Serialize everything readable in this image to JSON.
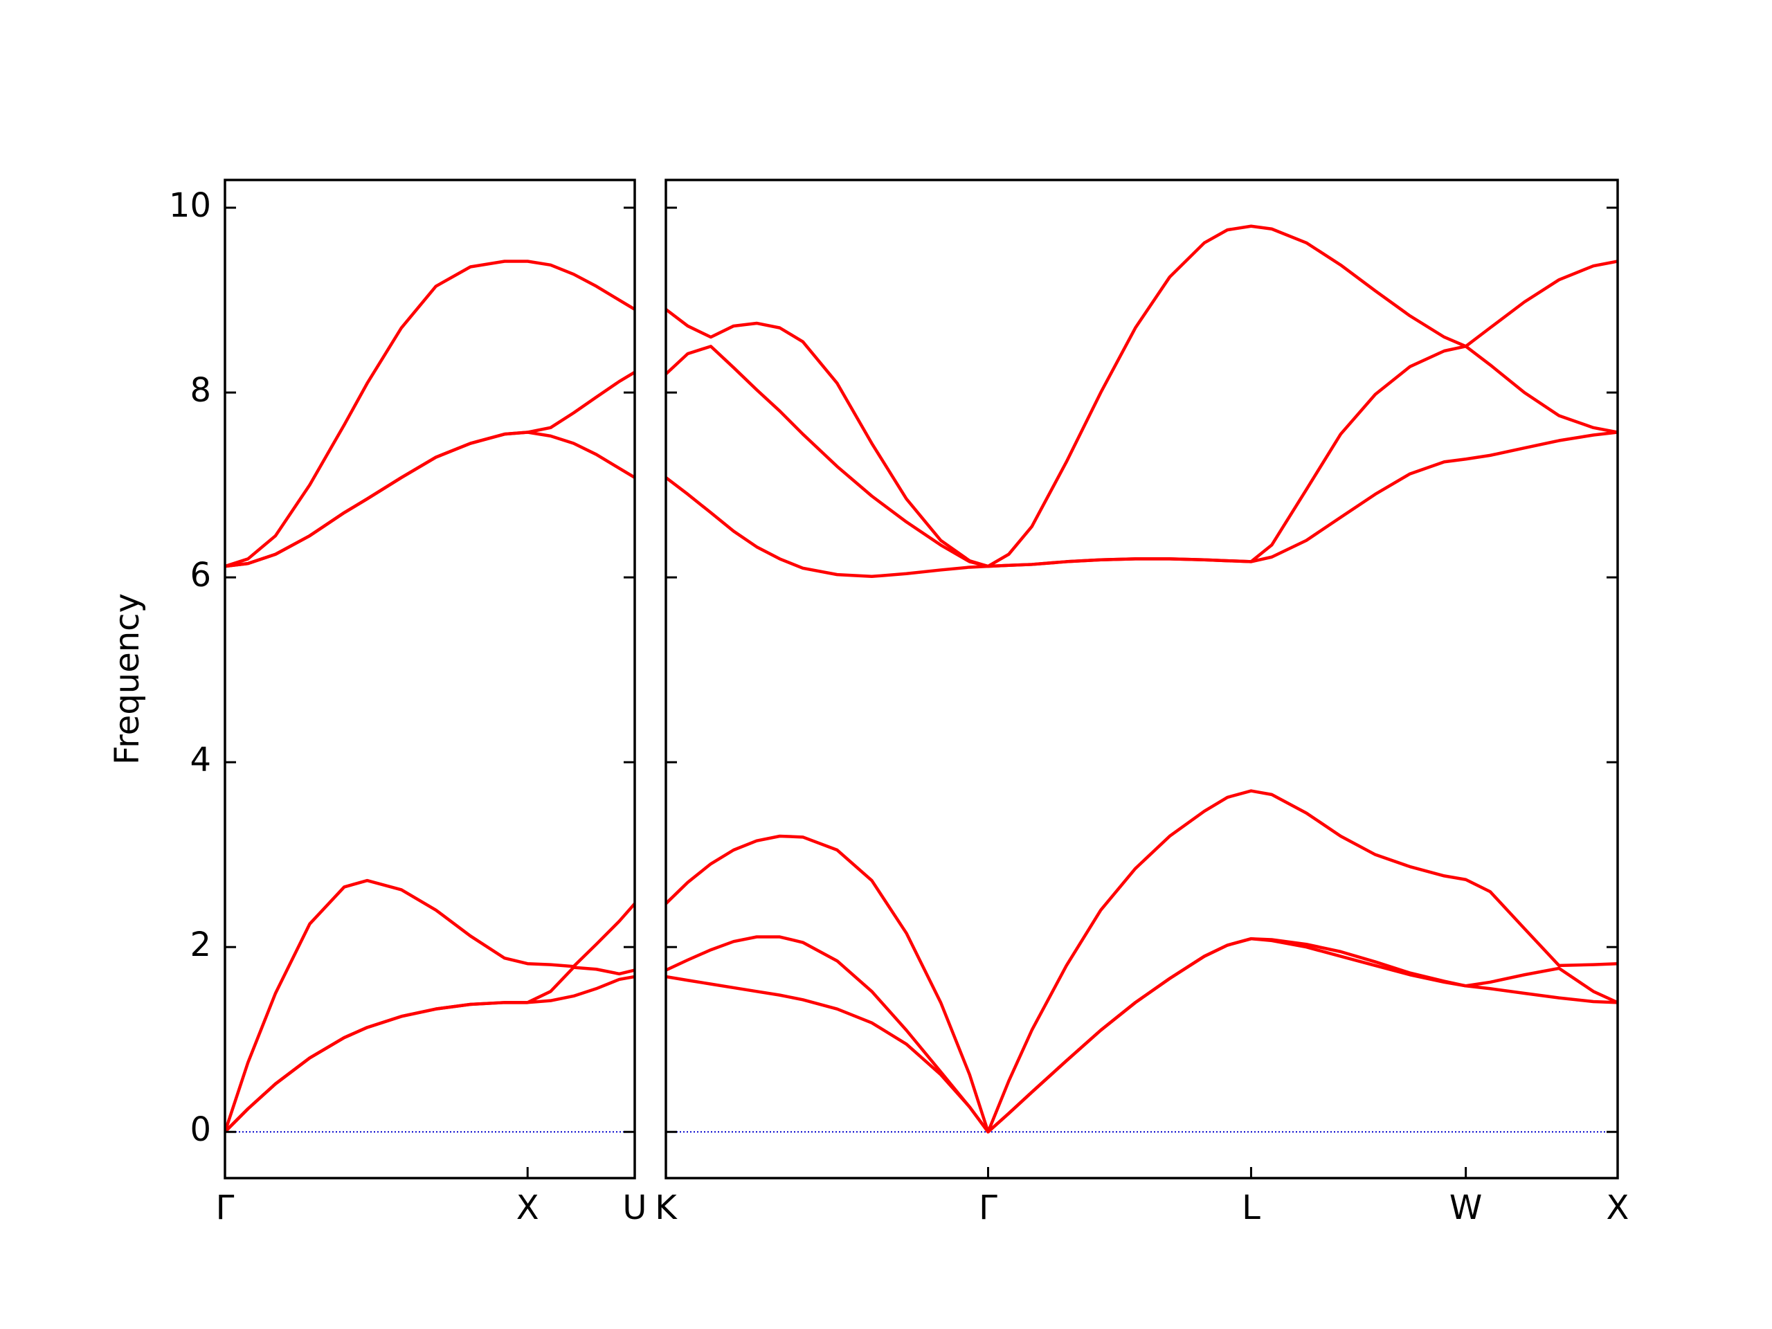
{
  "chart_data": [
    {
      "type": "line",
      "ylabel": "Frequency",
      "color": "#ff0000",
      "zero_line_color": "#0000cc",
      "show_ytick_labels": true,
      "xlim": [
        0,
        1.354
      ],
      "ylim": [
        -0.5,
        10.3
      ],
      "yticks": [
        0,
        2,
        4,
        6,
        8,
        10
      ],
      "xticks": [
        {
          "value": 0,
          "label": "Γ"
        },
        {
          "value": 1,
          "label": "X"
        },
        {
          "value": 1.354,
          "label": "U"
        }
      ],
      "x": [
        0,
        0.076,
        0.167,
        0.28,
        0.394,
        0.47,
        0.583,
        0.697,
        0.811,
        0.924,
        1.0,
        1.076,
        1.152,
        1.227,
        1.303,
        1.354
      ],
      "series": [
        {
          "values": [
            0,
            0.25,
            0.52,
            0.8,
            1.02,
            1.13,
            1.25,
            1.33,
            1.38,
            1.4,
            1.4,
            1.42,
            1.47,
            1.55,
            1.65,
            1.68
          ]
        },
        {
          "values": [
            0,
            0.25,
            0.52,
            0.8,
            1.02,
            1.13,
            1.25,
            1.33,
            1.38,
            1.4,
            1.4,
            1.52,
            1.78,
            1.76,
            1.71,
            1.75
          ]
        },
        {
          "values": [
            0,
            0.75,
            1.5,
            2.25,
            2.65,
            2.72,
            2.62,
            2.4,
            2.12,
            1.88,
            1.82,
            1.81,
            1.79,
            2.03,
            2.28,
            2.47
          ]
        },
        {
          "values": [
            6.12,
            6.15,
            6.25,
            6.45,
            6.7,
            6.85,
            7.08,
            7.3,
            7.45,
            7.55,
            7.57,
            7.53,
            7.45,
            7.33,
            7.18,
            7.08
          ]
        },
        {
          "values": [
            6.12,
            6.15,
            6.25,
            6.45,
            6.7,
            6.85,
            7.08,
            7.3,
            7.45,
            7.55,
            7.57,
            7.62,
            7.78,
            7.95,
            8.12,
            8.22
          ]
        },
        {
          "values": [
            6.12,
            6.2,
            6.45,
            7.0,
            7.65,
            8.1,
            8.7,
            9.15,
            9.36,
            9.42,
            9.42,
            9.38,
            9.28,
            9.15,
            9.0,
            8.9
          ]
        }
      ]
    },
    {
      "type": "line",
      "color": "#ff0000",
      "zero_line_color": "#0000cc",
      "show_ytick_labels": false,
      "xlim": [
        1.354,
        4.488
      ],
      "ylim": [
        -0.5,
        10.3
      ],
      "yticks": [
        0,
        2,
        4,
        6,
        8,
        10
      ],
      "xticks": [
        {
          "value": 1.354,
          "label": "K"
        },
        {
          "value": 2.415,
          "label": "Γ"
        },
        {
          "value": 3.281,
          "label": "L"
        },
        {
          "value": 3.988,
          "label": "W"
        },
        {
          "value": 4.488,
          "label": "X"
        }
      ],
      "x": [
        1.354,
        1.426,
        1.502,
        1.577,
        1.653,
        1.729,
        1.805,
        1.918,
        2.032,
        2.146,
        2.259,
        2.354,
        2.415,
        2.483,
        2.559,
        2.673,
        2.786,
        2.9,
        3.013,
        3.127,
        3.203,
        3.281,
        3.349,
        3.463,
        3.576,
        3.69,
        3.804,
        3.917,
        3.988,
        4.068,
        4.181,
        4.295,
        4.408,
        4.488
      ],
      "series": [
        {
          "values": [
            1.68,
            1.64,
            1.6,
            1.56,
            1.52,
            1.48,
            1.43,
            1.33,
            1.18,
            0.95,
            0.62,
            0.27,
            0,
            0.2,
            0.43,
            0.77,
            1.1,
            1.4,
            1.66,
            1.9,
            2.02,
            2.09,
            2.07,
            2.0,
            1.9,
            1.8,
            1.7,
            1.62,
            1.58,
            1.55,
            1.5,
            1.45,
            1.41,
            1.4
          ]
        },
        {
          "values": [
            1.75,
            1.86,
            1.97,
            2.06,
            2.11,
            2.11,
            2.05,
            1.85,
            1.52,
            1.1,
            0.65,
            0.27,
            0,
            0.2,
            0.43,
            0.77,
            1.1,
            1.4,
            1.66,
            1.9,
            2.02,
            2.09,
            2.08,
            2.03,
            1.95,
            1.84,
            1.72,
            1.63,
            1.58,
            1.62,
            1.7,
            1.77,
            1.52,
            1.4
          ]
        },
        {
          "values": [
            2.47,
            2.7,
            2.9,
            3.05,
            3.15,
            3.2,
            3.19,
            3.05,
            2.72,
            2.15,
            1.4,
            0.62,
            0,
            0.55,
            1.1,
            1.8,
            2.4,
            2.85,
            3.2,
            3.47,
            3.62,
            3.69,
            3.65,
            3.45,
            3.2,
            3.0,
            2.87,
            2.77,
            2.73,
            2.6,
            2.2,
            1.8,
            1.81,
            1.82
          ]
        },
        {
          "values": [
            7.08,
            6.9,
            6.7,
            6.5,
            6.33,
            6.2,
            6.1,
            6.03,
            6.01,
            6.04,
            6.08,
            6.11,
            6.12,
            6.13,
            6.14,
            6.17,
            6.19,
            6.2,
            6.2,
            6.19,
            6.18,
            6.17,
            6.22,
            6.4,
            6.65,
            6.9,
            7.12,
            7.25,
            7.28,
            7.32,
            7.4,
            7.48,
            7.54,
            7.57
          ]
        },
        {
          "values": [
            8.2,
            8.42,
            8.5,
            8.27,
            8.03,
            7.8,
            7.55,
            7.2,
            6.88,
            6.6,
            6.35,
            6.17,
            6.12,
            6.13,
            6.14,
            6.17,
            6.19,
            6.2,
            6.2,
            6.19,
            6.18,
            6.17,
            6.35,
            6.95,
            7.55,
            7.98,
            8.28,
            8.45,
            8.5,
            8.3,
            8.0,
            7.75,
            7.62,
            7.57
          ]
        },
        {
          "values": [
            8.9,
            8.72,
            8.6,
            8.72,
            8.75,
            8.7,
            8.55,
            8.1,
            7.45,
            6.85,
            6.4,
            6.18,
            6.12,
            6.25,
            6.55,
            7.25,
            8.0,
            8.7,
            9.25,
            9.62,
            9.76,
            9.8,
            9.77,
            9.62,
            9.38,
            9.1,
            8.83,
            8.6,
            8.5,
            8.7,
            8.98,
            9.22,
            9.37,
            9.42
          ]
        }
      ]
    }
  ]
}
